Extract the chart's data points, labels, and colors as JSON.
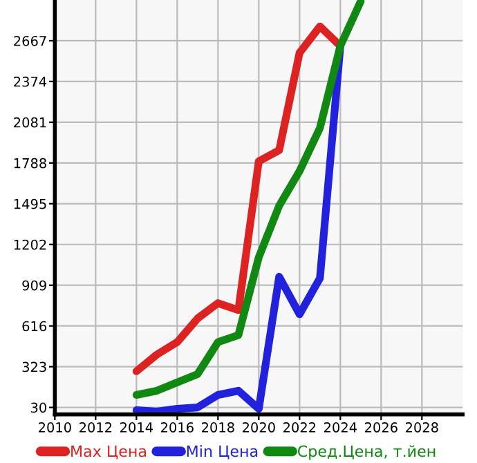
{
  "chart_data": {
    "type": "line",
    "x": [
      2014,
      2015,
      2016,
      2017,
      2018,
      2019,
      2020,
      2021,
      2022,
      2023,
      2024,
      2025
    ],
    "series": [
      {
        "name": "Max Цена",
        "color": "#dd2222",
        "values": [
          290,
          410,
          500,
          670,
          780,
          730,
          1800,
          1880,
          2580,
          2770,
          2630,
          null
        ]
      },
      {
        "name": "Min Цена",
        "color": "#2222dd",
        "values": [
          10,
          0,
          20,
          30,
          120,
          150,
          20,
          970,
          700,
          960,
          2630,
          null
        ]
      },
      {
        "name": "Сред.Цена, т.йен",
        "color": "#118811",
        "values": [
          120,
          150,
          210,
          270,
          500,
          550,
          1110,
          1480,
          1730,
          2040,
          2630,
          2950
        ]
      }
    ],
    "xlim": [
      2010,
      2030
    ],
    "ylim": [
      -20,
      2960
    ],
    "xticks": [
      2010,
      2012,
      2014,
      2016,
      2018,
      2020,
      2022,
      2024,
      2026,
      2028
    ],
    "yticks": [
      30,
      323,
      616,
      909,
      1202,
      1495,
      1788,
      2081,
      2374,
      2667
    ],
    "grid": true,
    "legend": "bottom",
    "marker": "none",
    "line_style": "solid"
  }
}
